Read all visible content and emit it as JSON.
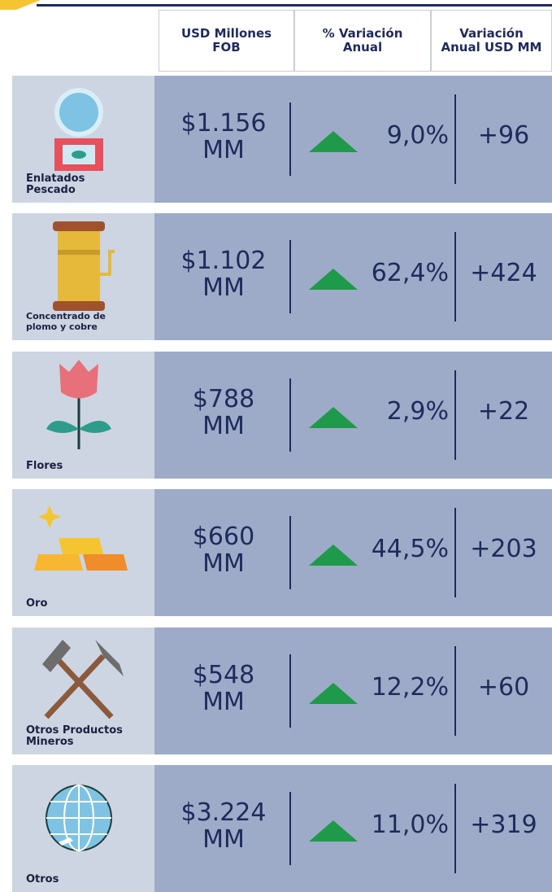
{
  "header": {
    "columns": [
      "USD Millones FOB",
      "% Variación Anual",
      "Variación Anual USD MM"
    ]
  },
  "rows": [
    {
      "name": [
        "Enlatados",
        "Pescado"
      ],
      "value": "$1.156",
      "unit": "MM",
      "variation": "9,0%",
      "annual": "+96"
    },
    {
      "name": [
        "Concentrado de",
        "plomo y cobre"
      ],
      "value": "$1.102",
      "unit": "MM",
      "variation": "62,4%",
      "annual": "+424"
    },
    {
      "name": [
        "Flores"
      ],
      "value": "$788",
      "unit": "MM",
      "variation": "2,9%",
      "annual": "+22"
    },
    {
      "name": [
        "Oro"
      ],
      "value": "$660",
      "unit": "MM",
      "variation": "44,5%",
      "annual": "+203"
    },
    {
      "name": [
        "Otros Productos",
        "Mineros"
      ],
      "value": "$548",
      "unit": "MM",
      "variation": "12,2%",
      "annual": "+60"
    },
    {
      "name": [
        "Otros"
      ],
      "value": "$3.224",
      "unit": "MM",
      "variation": "11,0%",
      "annual": "+319"
    }
  ]
}
